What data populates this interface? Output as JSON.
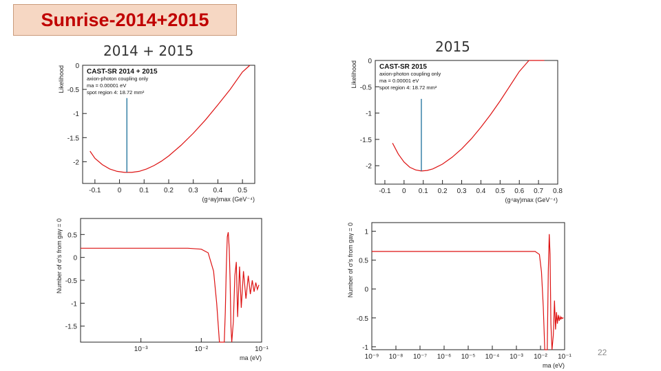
{
  "slide": {
    "title": "Sunrise-2014+2015",
    "left_label": "2014 + 2015",
    "right_label": "2015",
    "page_number": "22"
  },
  "colors": {
    "curve": "#dd1111",
    "marker": "#1a6e9a",
    "title_bg": "#f6d7c3",
    "title_text": "#c00000"
  },
  "chart_data": [
    {
      "id": "tl",
      "type": "line",
      "xscale": "linear",
      "xlim": [
        -0.15,
        0.55
      ],
      "ylim": [
        -2.45,
        0
      ],
      "xticks": [
        -0.1,
        0,
        0.1,
        0.2,
        0.3,
        0.4,
        0.5
      ],
      "xtick_labels": [
        "-0.1",
        "0",
        "0.1",
        "0.2",
        "0.3",
        "0.4",
        "0.5"
      ],
      "yticks": [
        0,
        -0.5,
        -1,
        -1.5,
        -2
      ],
      "ytick_labels": [
        "0",
        "-0.5",
        "-1",
        "-1.5",
        "-2"
      ],
      "ylabel": "Likelihood",
      "xlabel": "(g⁴aγ)max (GeV⁻⁴)",
      "legend": [
        "CAST-SR 2014 + 2015",
        "axion-photon coupling only",
        "ma = 0.00001 eV",
        "spot region 4: 18.72 mm²"
      ],
      "marker_x": 0.03,
      "marker_y": [
        -2.22,
        -0.68
      ],
      "x": [
        -0.12,
        -0.1,
        -0.07,
        -0.04,
        -0.01,
        0.02,
        0.05,
        0.08,
        0.11,
        0.14,
        0.17,
        0.2,
        0.25,
        0.3,
        0.35,
        0.4,
        0.45,
        0.5,
        0.53
      ],
      "y": [
        -1.78,
        -1.93,
        -2.06,
        -2.15,
        -2.2,
        -2.22,
        -2.22,
        -2.2,
        -2.15,
        -2.08,
        -1.99,
        -1.88,
        -1.66,
        -1.41,
        -1.13,
        -0.82,
        -0.5,
        -0.14,
        0.0
      ]
    },
    {
      "id": "tr",
      "type": "line",
      "xscale": "linear",
      "xlim": [
        -0.15,
        0.8
      ],
      "ylim": [
        -2.35,
        0
      ],
      "xticks": [
        -0.1,
        0,
        0.1,
        0.2,
        0.3,
        0.4,
        0.5,
        0.6,
        0.7,
        0.8
      ],
      "xtick_labels": [
        "-0.1",
        "0",
        "0.1",
        "0.2",
        "0.3",
        "0.4",
        "0.5",
        "0.6",
        "0.7",
        "0.8"
      ],
      "yticks": [
        0,
        -0.5,
        -1,
        -1.5,
        -2
      ],
      "ytick_labels": [
        "0",
        "-0.5",
        "-1",
        "-1.5",
        "-2"
      ],
      "ylabel": "Likelihood",
      "xlabel": "(g⁴aγ)max (GeV⁻⁴)",
      "legend": [
        "CAST-SR 2015",
        "axion-photon coupling only",
        "ma = 0.00001 eV",
        "spot region 4: 18.72 mm²"
      ],
      "marker_x": 0.09,
      "marker_y": [
        -2.1,
        -0.73
      ],
      "x": [
        -0.06,
        -0.03,
        0.0,
        0.03,
        0.06,
        0.09,
        0.12,
        0.15,
        0.2,
        0.25,
        0.3,
        0.35,
        0.4,
        0.45,
        0.5,
        0.55,
        0.6,
        0.65,
        0.7,
        0.73
      ],
      "y": [
        -1.57,
        -1.78,
        -1.93,
        -2.03,
        -2.08,
        -2.1,
        -2.09,
        -2.06,
        -1.97,
        -1.84,
        -1.68,
        -1.49,
        -1.27,
        -1.03,
        -0.77,
        -0.49,
        -0.21,
        0.0,
        0.0,
        0.0
      ]
    },
    {
      "id": "bl",
      "type": "line",
      "xscale": "log",
      "xlim": [
        0.0001,
        0.1
      ],
      "ylim": [
        -1.85,
        0.85
      ],
      "xticks": [
        0.001,
        0.01,
        0.1
      ],
      "xtick_labels": [
        "10⁻³",
        "10⁻²",
        "10⁻¹"
      ],
      "yticks": [
        0.5,
        0,
        -0.5,
        -1,
        -1.5
      ],
      "ytick_labels": [
        "0.5",
        "0",
        "-0.5",
        "-1",
        "-1.5"
      ],
      "ylabel": "Number of σ's from gaγ = 0",
      "xlabel": "ma (eV)",
      "x": [
        0.0001,
        0.003,
        0.006,
        0.01,
        0.013,
        0.016,
        0.018,
        0.02,
        0.022,
        0.024,
        0.025,
        0.026,
        0.027,
        0.028,
        0.029,
        0.03,
        0.031,
        0.032,
        0.034,
        0.036,
        0.038,
        0.04,
        0.043,
        0.046,
        0.05,
        0.055,
        0.06,
        0.065,
        0.07,
        0.075,
        0.08,
        0.085,
        0.09
      ],
      "y": [
        0.2,
        0.2,
        0.2,
        0.18,
        0.1,
        -0.3,
        -1.0,
        -1.85,
        -1.85,
        -1.85,
        -1.2,
        -0.2,
        0.45,
        0.55,
        0.2,
        -0.5,
        -1.5,
        -1.85,
        -1.4,
        -0.4,
        -0.1,
        -1.3,
        -0.2,
        -1.1,
        -0.3,
        -0.9,
        -0.4,
        -0.8,
        -0.5,
        -0.75,
        -0.55,
        -0.7,
        -0.6
      ]
    },
    {
      "id": "br",
      "type": "line",
      "xscale": "log",
      "xlim": [
        1e-09,
        0.1
      ],
      "ylim": [
        -1.05,
        1.15
      ],
      "xticks": [
        1e-09,
        1e-08,
        1e-07,
        1e-06,
        1e-05,
        0.0001,
        0.001,
        0.01,
        0.1
      ],
      "xtick_labels": [
        "10⁻⁹",
        "10⁻⁸",
        "10⁻⁷",
        "10⁻⁶",
        "10⁻⁵",
        "10⁻⁴",
        "10⁻³",
        "10⁻²",
        "10⁻¹"
      ],
      "yticks": [
        1,
        0.5,
        0,
        -0.5,
        -1
      ],
      "ytick_labels": [
        "1",
        "0.5",
        "0",
        "-0.5",
        "-1"
      ],
      "ylabel": "Number of σ's from gaγ = 0",
      "xlabel": "ma (eV)",
      "x": [
        1e-09,
        1e-06,
        0.001,
        0.006,
        0.009,
        0.011,
        0.013,
        0.015,
        0.017,
        0.019,
        0.021,
        0.023,
        0.025,
        0.027,
        0.03,
        0.034,
        0.038,
        0.042,
        0.046,
        0.05,
        0.055,
        0.06,
        0.065,
        0.07,
        0.075,
        0.08,
        0.085,
        0.09
      ],
      "y": [
        0.65,
        0.65,
        0.65,
        0.65,
        0.6,
        0.3,
        -0.3,
        -1.05,
        -1.05,
        -1.05,
        0.3,
        0.95,
        0.6,
        -0.6,
        -1.05,
        -0.8,
        -0.2,
        -0.7,
        -0.4,
        -0.6,
        -0.45,
        -0.55,
        -0.48,
        -0.52,
        -0.49,
        -0.51,
        -0.5,
        -0.5
      ]
    }
  ]
}
